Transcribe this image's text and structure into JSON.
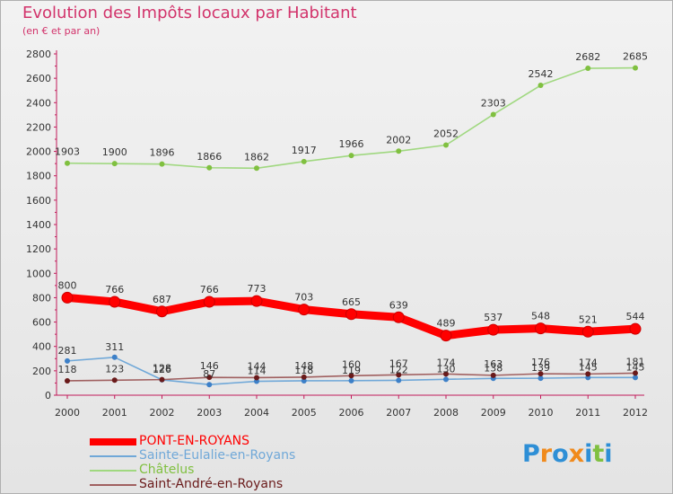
{
  "title": "Evolution des Impôts locaux par Habitant",
  "subtitle": "(en € et par an)",
  "logo": {
    "text": "Proxiti",
    "letters": [
      "P",
      "r",
      "o",
      "x",
      "i",
      "t",
      "i"
    ],
    "letter_colors": [
      "#2e8fd6",
      "#f08a1c",
      "#2e8fd6",
      "#f08a1c",
      "#2e8fd6",
      "#80c040",
      "#2e8fd6"
    ]
  },
  "chart_data": {
    "type": "line",
    "title": "Evolution des Impôts locaux par Habitant",
    "subtitle": "(en € et par an)",
    "xlabel": "",
    "ylabel": "",
    "ylim": [
      0,
      2800
    ],
    "yticks": [
      0,
      200,
      400,
      600,
      800,
      1000,
      1200,
      1400,
      1600,
      1800,
      2000,
      2200,
      2400,
      2600,
      2800
    ],
    "grid": false,
    "legend_position": "bottom-left",
    "x": [
      "2000",
      "2001",
      "2002",
      "2003",
      "2004",
      "2005",
      "2006",
      "2007",
      "2008",
      "2009",
      "2010",
      "2011",
      "2012"
    ],
    "series": [
      {
        "name": "PONT-EN-ROYANS",
        "color": "#ff0000",
        "marker_color": "#ff0000",
        "weight": "heavy",
        "values": [
          800,
          766,
          687,
          766,
          773,
          703,
          665,
          639,
          489,
          537,
          548,
          521,
          544
        ]
      },
      {
        "name": "Sainte-Eulalie-en-Royans",
        "color": "#70a8d8",
        "marker_color": "#3d80c8",
        "weight": "thin",
        "values": [
          281,
          311,
          126,
          87,
          114,
          118,
          119,
          122,
          130,
          138,
          139,
          145,
          145
        ]
      },
      {
        "name": "Châtelus",
        "color": "#a0d880",
        "marker_color": "#80c040",
        "weight": "thin",
        "values": [
          1903,
          1900,
          1896,
          1866,
          1862,
          1917,
          1966,
          2002,
          2052,
          2303,
          2542,
          2682,
          2685
        ]
      },
      {
        "name": "Saint-André-en-Royans",
        "color": "#a06060",
        "marker_color": "#6a1a1a",
        "weight": "thin",
        "values": [
          118,
          123,
          128,
          146,
          144,
          148,
          160,
          167,
          174,
          163,
          176,
          174,
          181
        ]
      }
    ]
  }
}
